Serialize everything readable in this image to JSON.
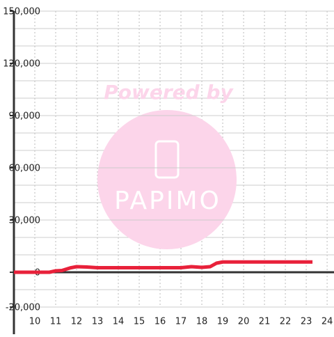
{
  "chart_data": {
    "type": "line",
    "watermark": {
      "top": "Powered by",
      "logo": "PAPIMO"
    },
    "x": [
      9,
      10,
      10.7,
      11,
      11.3,
      11.7,
      12,
      12.5,
      13,
      14,
      15,
      16,
      17,
      17.5,
      18,
      18.4,
      18.7,
      19,
      20,
      21,
      22,
      23,
      23.3
    ],
    "series": [
      {
        "color": "#e8213a",
        "values": [
          0,
          0,
          0,
          800,
          1000,
          2500,
          3200,
          3000,
          2600,
          2600,
          2600,
          2600,
          2600,
          3200,
          2800,
          3200,
          5200,
          5900,
          5900,
          5900,
          5900,
          5900,
          5900
        ]
      }
    ],
    "xlim": [
      9,
      24.33
    ],
    "ylim": [
      -20000,
      150000
    ],
    "xticks": [
      10,
      11,
      12,
      13,
      14,
      15,
      16,
      17,
      18,
      19,
      20,
      21,
      22,
      23,
      24
    ],
    "yticks": [
      {
        "value": 150000,
        "label": "150,000"
      },
      {
        "value": 120000,
        "label": "120,000"
      },
      {
        "value": 90000,
        "label": "90,000"
      },
      {
        "value": 60000,
        "label": "60,000"
      },
      {
        "value": 30000,
        "label": "30,000"
      },
      0,
      {
        "value": -20000,
        "label": "-20,000"
      }
    ],
    "ygrid": [
      -10000,
      10000,
      20000,
      40000,
      50000,
      70000,
      80000,
      100000,
      110000,
      130000,
      140000
    ],
    "grid": true
  }
}
